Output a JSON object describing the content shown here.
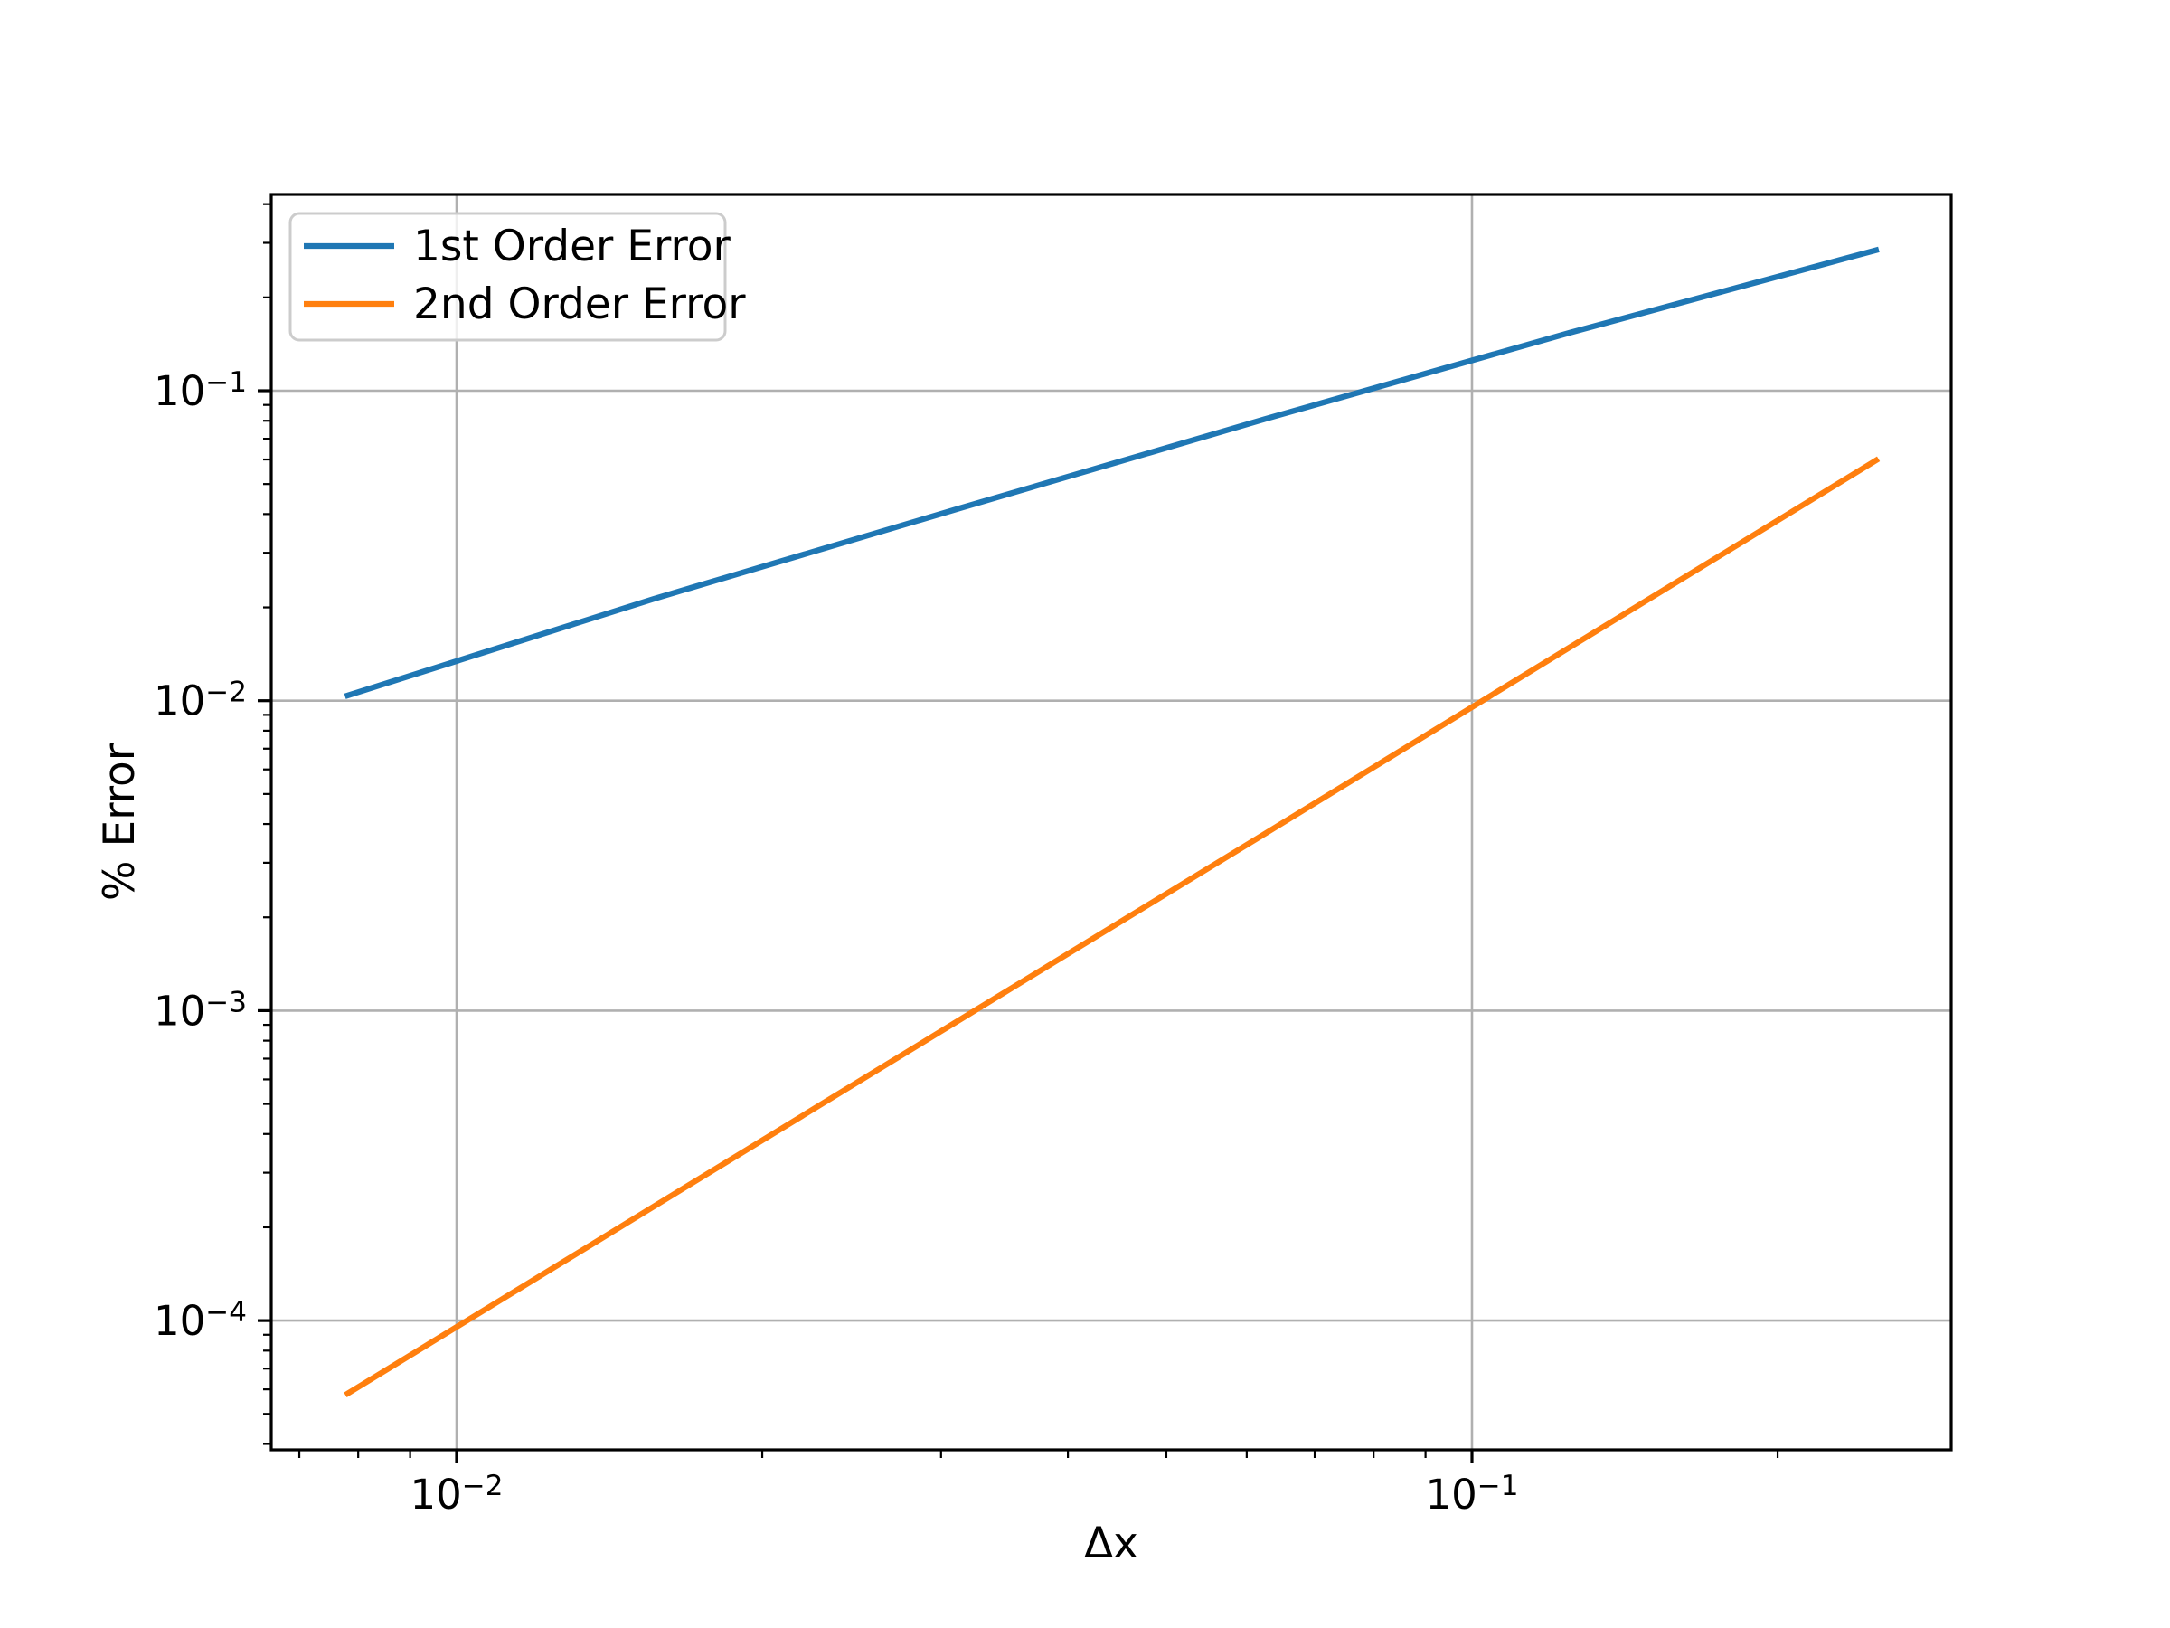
{
  "figure": {
    "background": "#ffffff"
  },
  "chart_data": {
    "type": "line",
    "title": "",
    "xlabel": "Δx",
    "ylabel": "% Error",
    "xscale": "log",
    "yscale": "log",
    "grid": true,
    "grid_which": "major",
    "xlim": [
      0.00657,
      0.2964
    ],
    "ylim": [
      3.83e-05,
      0.43
    ],
    "x_tick_exponents": [
      -2,
      -1
    ],
    "y_tick_exponents": [
      -1,
      -2,
      -3,
      -4
    ],
    "x": [
      0.0078125,
      0.015625,
      0.03125,
      0.0625,
      0.125,
      0.25
    ],
    "series": [
      {
        "name": "1st Order Error",
        "color": "#1f77b4",
        "values": [
          0.0104,
          0.0213,
          0.0417,
          0.081,
          0.154,
          0.284
        ]
      },
      {
        "name": "2nd Order Error",
        "color": "#ff7f0e",
        "values": [
          5.82e-05,
          0.000233,
          0.000931,
          0.00372,
          0.0149,
          0.0596
        ]
      }
    ],
    "legend": {
      "position": "upper left",
      "entries": [
        "1st Order Error",
        "2nd Order Error"
      ]
    },
    "style_colors": {
      "axis": "#000000",
      "grid": "#b0b0b0",
      "legend_border": "#cccccc",
      "legend_fill": "#ffffff"
    }
  }
}
